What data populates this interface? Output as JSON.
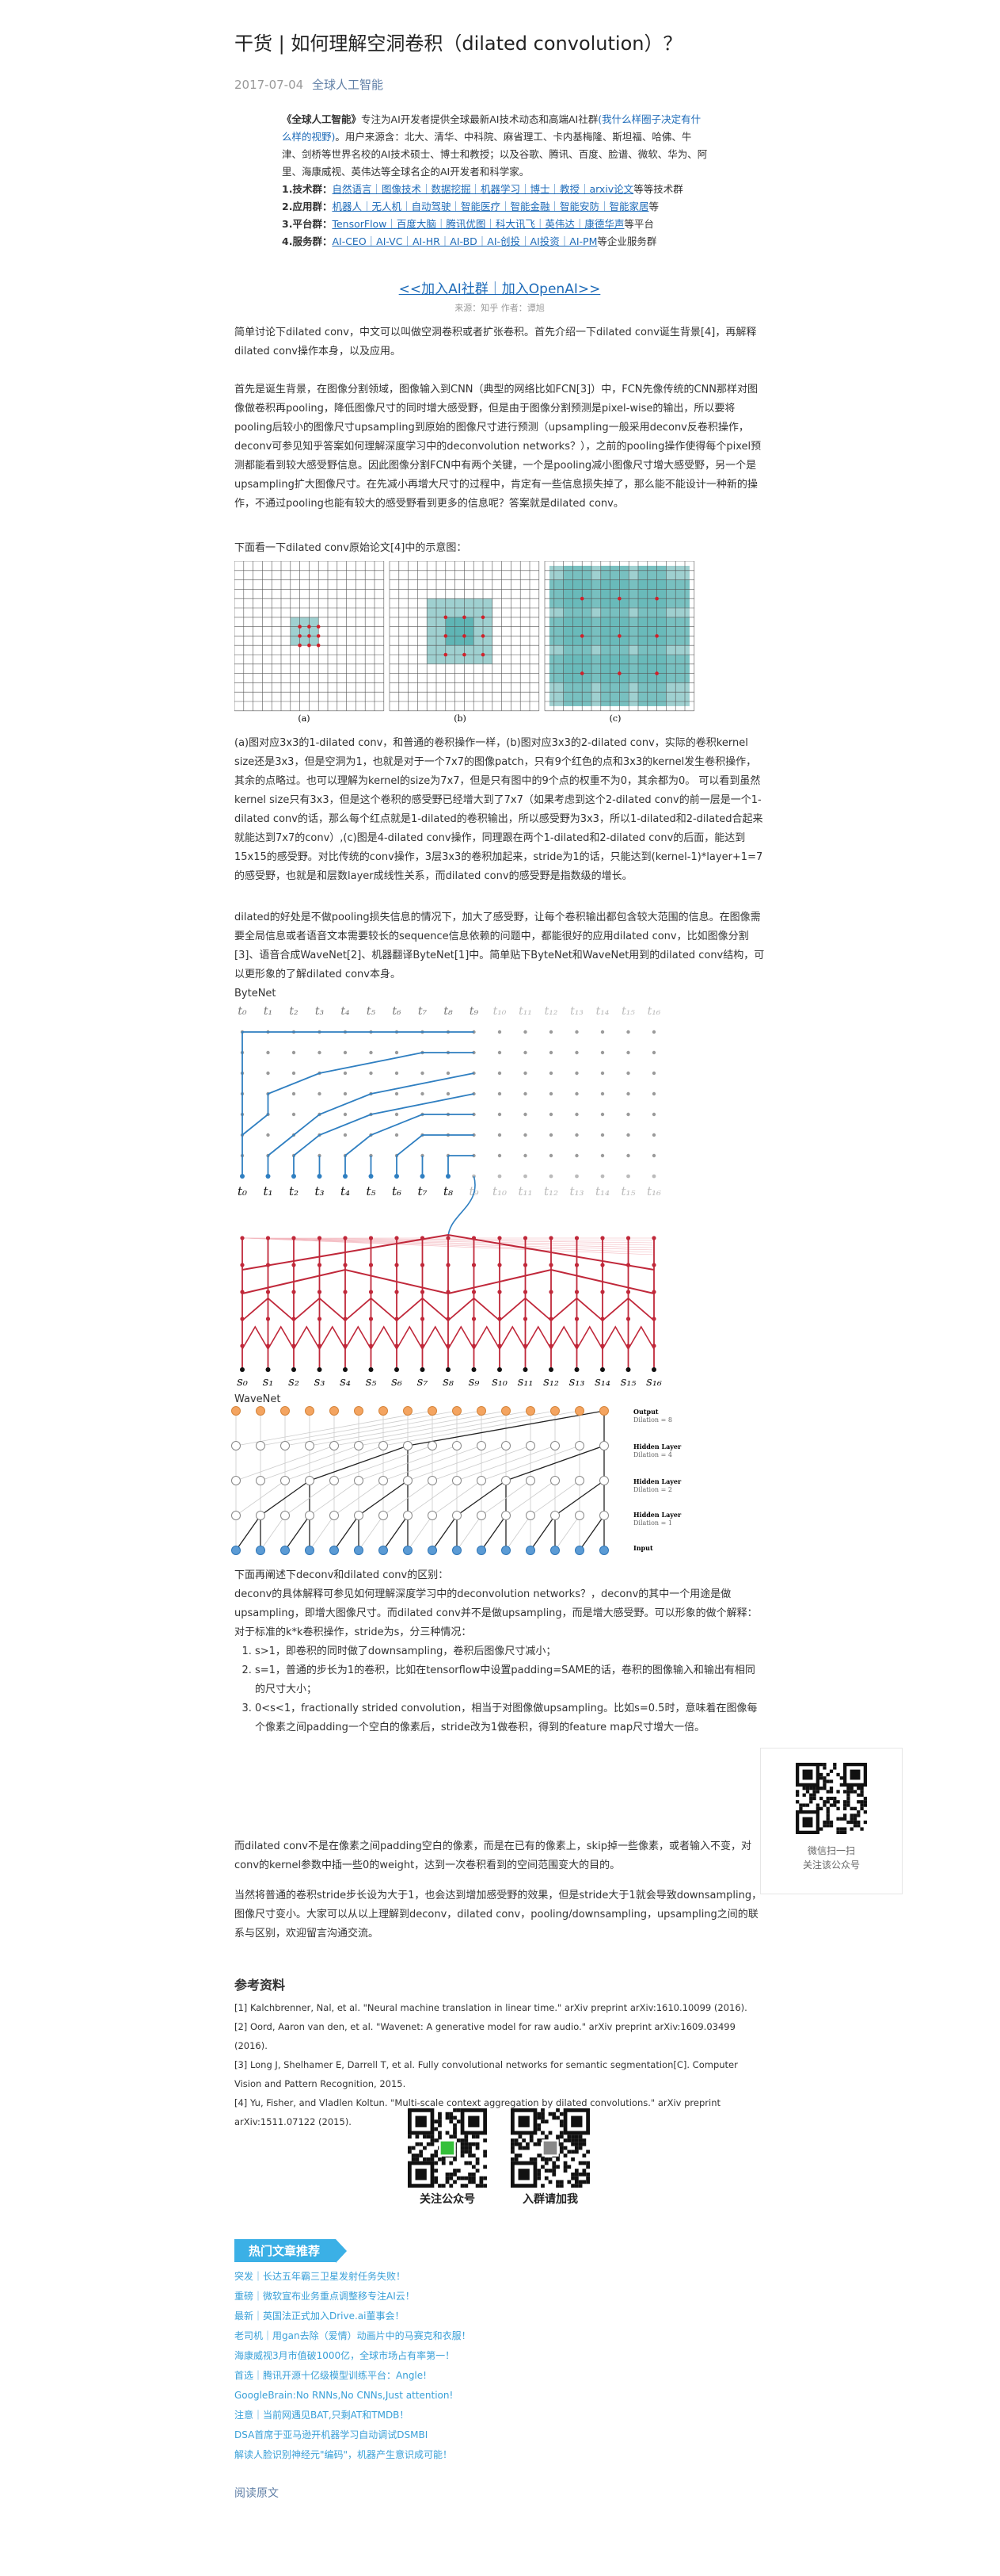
{
  "article": {
    "title": "干货 | 如何理解空洞卷积（dilated convolution）？",
    "date": "2017-07-04",
    "author": "全球人工智能"
  },
  "intro": {
    "line1_a": "《全球人工智能》",
    "line1_b": "专注为AI开发者提供全球最新AI技术动态和高端AI社群",
    "line1_link": "(我什么样圈子决定有什么样的视野)",
    "line1_c": "。用户来源含：北大、清华、中科院、麻省理工、卡内基梅隆、斯坦福、哈佛、牛津、剑桥等世界名校的AI技术硕士、博士和教授；以及谷歌、腾讯、百度、脸谱、微软、华为、阿里、海康威视、英伟达等全球名企的AI开发者和科学家。",
    "rows": [
      {
        "label": "1.技术群：",
        "items": "自然语言｜图像技术｜数据挖掘｜机器学习｜博士｜教授｜arxiv论文",
        "suffix": "等等技术群"
      },
      {
        "label": "2.应用群：",
        "items": "机器人｜无人机｜自动驾驶｜智能医疗｜智能金融｜智能安防｜智能家居",
        "suffix": "等"
      },
      {
        "label": "3.平台群：",
        "items": "TensorFlow｜百度大脑｜腾讯优图｜科大讯飞｜英伟达｜康德华声",
        "suffix": "等平台"
      },
      {
        "label": "4.服务群：",
        "items": "AI-CEO｜AI-VC｜AI-HR｜AI-BD｜AI-创投｜AI投资｜AI-PM",
        "suffix": "等企业服务群"
      }
    ],
    "join": "<<加入AI社群｜加入OpenAI>>",
    "source": "来源：知乎  作者：谭旭"
  },
  "body": {
    "p1": "简单讨论下dilated conv，中文可以叫做空洞卷积或者扩张卷积。首先介绍一下dilated conv诞生背景[4]，再解释dilated conv操作本身，以及应用。",
    "p2": "首先是诞生背景，在图像分割领域，图像输入到CNN（典型的网络比如FCN[3]）中，FCN先像传统的CNN那样对图像做卷积再pooling，降低图像尺寸的同时增大感受野，但是由于图像分割预测是pixel-wise的输出，所以要将pooling后较小的图像尺寸upsampling到原始的图像尺寸进行预测（upsampling一般采用deconv反卷积操作，deconv可参见知乎答案如何理解深度学习中的deconvolution networks？），之前的pooling操作使得每个pixel预测都能看到较大感受野信息。因此图像分割FCN中有两个关键，一个是pooling减小图像尺寸增大感受野，另一个是upsampling扩大图像尺寸。在先减小再增大尺寸的过程中，肯定有一些信息损失掉了，那么能不能设计一种新的操作，不通过pooling也能有较大的感受野看到更多的信息呢？答案就是dilated conv。",
    "p3": "下面看一下dilated conv原始论文[4]中的示意图：",
    "fig_labels": [
      "(a)",
      "(b)",
      "(c)"
    ],
    "p4": "(a)图对应3x3的1-dilated conv，和普通的卷积操作一样，(b)图对应3x3的2-dilated conv，实际的卷积kernel size还是3x3，但是空洞为1，也就是对于一个7x7的图像patch，只有9个红色的点和3x3的kernel发生卷积操作，其余的点略过。也可以理解为kernel的size为7x7，但是只有图中的9个点的权重不为0，其余都为0。 可以看到虽然kernel size只有3x3，但是这个卷积的感受野已经增大到了7x7（如果考虑到这个2-dilated conv的前一层是一个1-dilated conv的话，那么每个红点就是1-dilated的卷积输出，所以感受野为3x3，所以1-dilated和2-dilated合起来就能达到7x7的conv）,(c)图是4-dilated conv操作，同理跟在两个1-dilated和2-dilated conv的后面，能达到15x15的感受野。对比传统的conv操作，3层3x3的卷积加起来，stride为1的话，只能达到(kernel-1)*layer+1=7的感受野，也就是和层数layer成线性关系，而dilated conv的感受野是指数级的增长。",
    "p5": "dilated的好处是不做pooling损失信息的情况下，加大了感受野，让每个卷积输出都包含较大范围的信息。在图像需要全局信息或者语音文本需要较长的sequence信息依赖的问题中，都能很好的应用dilated conv，比如图像分割[3]、语音合成WaveNet[2]、机器翻译ByteNet[1]中。简单贴下ByteNet和WaveNet用到的dilated conv结构，可以更形象的了解dilated conv本身。",
    "bytenet_label": "ByteNet",
    "wavenet_label": "WaveNet",
    "p6_title": "下面再阐述下deconv和dilated conv的区别：",
    "p6": "deconv的具体解释可参见如何理解深度学习中的deconvolution networks？，deconv的其中一个用途是做upsampling，即增大图像尺寸。而dilated conv并不是做upsampling，而是增大感受野。可以形象的做个解释：",
    "p7": "对于标准的k*k卷积操作，stride为s，分三种情况：",
    "cases": [
      "s>1，即卷积的同时做了downsampling，卷积后图像尺寸减小；",
      "s=1，普通的步长为1的卷积，比如在tensorflow中设置padding=SAME的话，卷积的图像输入和输出有相同的尺寸大小；",
      "0<s<1，fractionally strided convolution，相当于对图像做upsampling。比如s=0.5时，意味着在图像每个像素之间padding一个空白的像素后，stride改为1做卷积，得到的feature map尺寸增大一倍。"
    ],
    "p8": "而dilated conv不是在像素之间padding空白的像素，而是在已有的像素上，skip掉一些像素，或者输入不变，对conv的kernel参数中插一些0的weight，达到一次卷积看到的空间范围变大的目的。",
    "p9": "当然将普通的卷积stride步长设为大于1，也会达到增加感受野的效果，但是stride大于1就会导致downsampling，图像尺寸变小。大家可以从以上理解到deconv，dilated conv，pooling/downsampling，upsampling之间的联系与区别，欢迎留言沟通交流。"
  },
  "references": {
    "heading": "参考资料",
    "items": [
      "[1] Kalchbrenner, Nal, et al. \"Neural machine translation in linear time.\" arXiv preprint arXiv:1610.10099 (2016).",
      "[2] Oord, Aaron van den, et al. \"Wavenet: A generative model for raw audio.\" arXiv preprint arXiv:1609.03499 (2016).",
      "[3] Long J, Shelhamer E, Darrell T, et al. Fully convolutional networks for semantic segmentation[C]. Computer Vision and Pattern Recognition, 2015.",
      "[4] Yu, Fisher, and Vladlen Koltun. \"Multi-scale context aggregation by dilated convolutions.\" arXiv preprint arXiv:1511.07122 (2015)."
    ]
  },
  "qr": {
    "left_label": "关注公众号",
    "right_label": "入群请加我",
    "sidebar_line1": "微信扫一扫",
    "sidebar_line2": "关注该公众号"
  },
  "hot": {
    "tag": "热门文章推荐",
    "items": [
      "突发｜长达五年霸三卫星发射任务失败！",
      "重磅｜微软宣布业务重点调整移专注AI云！",
      "最新｜英国法正式加入Drive.ai董事会！",
      "老司机｜用gan去除（爱情）动画片中的马赛克和衣服！",
      "海康威视3月市值破1000亿，全球市场占有率第一！",
      "首选｜腾讯开源十亿级模型训练平台：Angle!",
      "GoogleBrain:No RNNs,No CNNs,Just attention!",
      "注意｜当前网遇见BAT,只剩AT和TMDB！",
      "DSA首席于亚马逊开机器学习自动调试DSMBI",
      "解读人脸识别神经元\"编码\"，机器产生意识成可能！"
    ],
    "read_more": "阅读原文"
  },
  "wavenet_legend": {
    "output": "Output",
    "output_d": "Dilation = 8",
    "h3": "Hidden Layer",
    "h3_d": "Dilation = 4",
    "h2": "Hidden Layer",
    "h2_d": "Dilation = 2",
    "h1": "Hidden Layer",
    "h1_d": "Dilation = 1",
    "input": "Input"
  }
}
